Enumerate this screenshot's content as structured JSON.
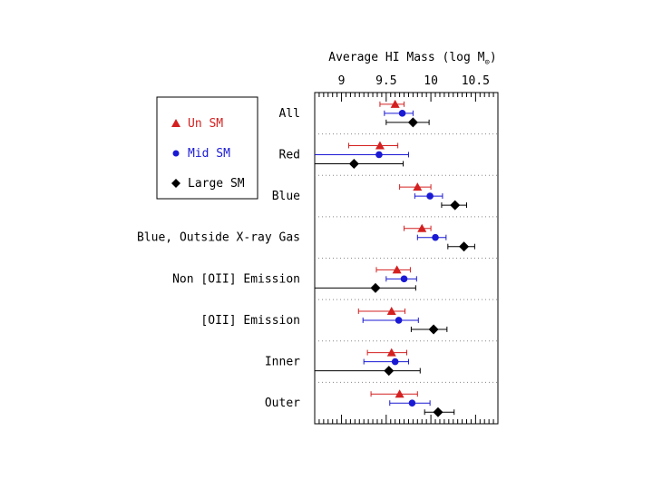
{
  "chart_data": {
    "type": "scatter",
    "title": "Average HI Mass (log M",
    "title_sub": "⊙",
    "title_end": ")",
    "xlim": [
      8.7,
      10.75
    ],
    "xticks": [
      9,
      9.5,
      10,
      10.5
    ],
    "xtick_labels": [
      "9",
      "9.5",
      "10",
      "10.5"
    ],
    "categories": [
      "All",
      "Red",
      "Blue",
      "Blue, Outside X-ray Gas",
      "Non [OII] Emission",
      "[OII] Emission",
      "Inner",
      "Outer"
    ],
    "series": [
      {
        "name": "Un SM",
        "color": "#d42020",
        "marker": "triangle",
        "values": [
          9.6,
          9.43,
          9.85,
          9.9,
          9.62,
          9.56,
          9.56,
          9.65
        ],
        "err_low": [
          0.17,
          0.35,
          0.2,
          0.2,
          0.23,
          0.37,
          0.27,
          0.32
        ],
        "err_high": [
          0.1,
          0.2,
          0.15,
          0.1,
          0.15,
          0.15,
          0.17,
          0.2
        ]
      },
      {
        "name": "Mid SM",
        "color": "#1a1ad4",
        "marker": "circle",
        "values": [
          9.68,
          9.42,
          9.99,
          10.05,
          9.7,
          9.64,
          9.6,
          9.79
        ],
        "err_low": [
          0.2,
          0.8,
          0.17,
          0.2,
          0.2,
          0.4,
          0.35,
          0.25
        ],
        "err_high": [
          0.12,
          0.33,
          0.14,
          0.12,
          0.14,
          0.22,
          0.15,
          0.2
        ]
      },
      {
        "name": "Large SM",
        "color": "#000000",
        "marker": "diamond",
        "values": [
          9.8,
          9.14,
          10.27,
          10.37,
          9.38,
          10.03,
          9.53,
          10.08
        ],
        "err_low": [
          0.3,
          0.5,
          0.15,
          0.18,
          0.7,
          0.25,
          0.85,
          0.15
        ],
        "err_high": [
          0.18,
          0.55,
          0.13,
          0.12,
          0.45,
          0.15,
          0.35,
          0.18
        ]
      }
    ],
    "legend": [
      "Un SM",
      "Mid SM",
      "Large SM"
    ],
    "legend_position": "upper-left"
  }
}
